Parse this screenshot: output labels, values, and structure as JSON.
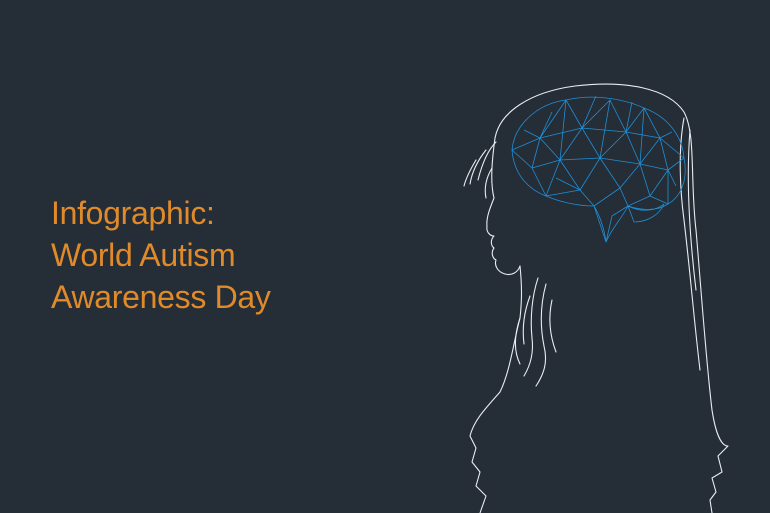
{
  "headline": {
    "line1": "Infographic:",
    "line2": "World Autism",
    "line3": "Awareness Day"
  },
  "colors": {
    "background": "#252d37",
    "headline": "#e08a2a",
    "outline": "#e9edf1",
    "brain": "#1f8fd6"
  },
  "icons": {
    "silhouette": "girl-profile-outline-icon",
    "brain": "low-poly-brain-icon"
  }
}
